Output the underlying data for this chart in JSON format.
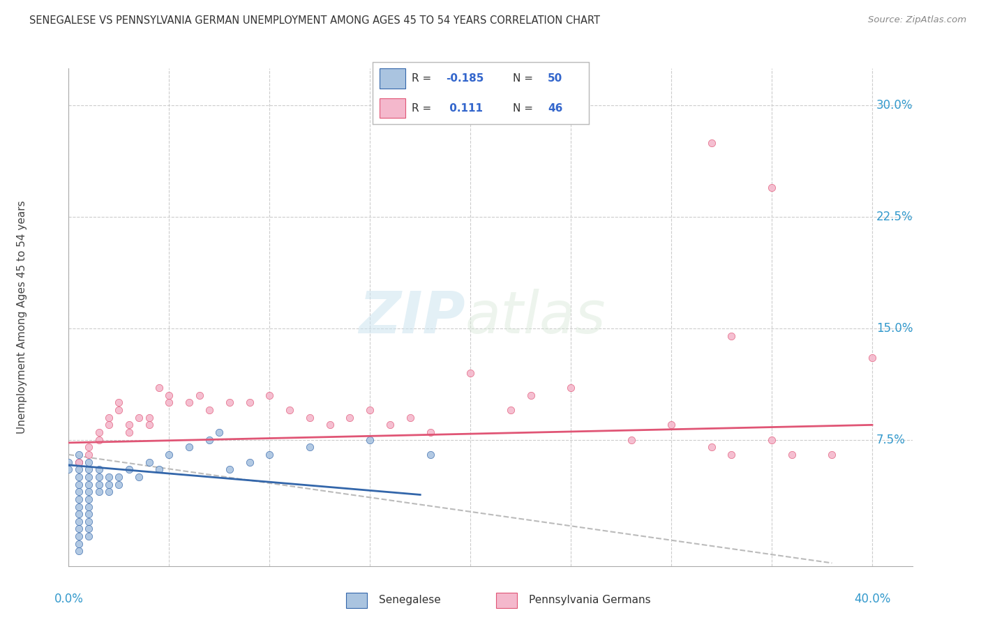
{
  "title": "SENEGALESE VS PENNSYLVANIA GERMAN UNEMPLOYMENT AMONG AGES 45 TO 54 YEARS CORRELATION CHART",
  "source": "Source: ZipAtlas.com",
  "ylabel": "Unemployment Among Ages 45 to 54 years",
  "yticks_labels": [
    "30.0%",
    "22.5%",
    "15.0%",
    "7.5%"
  ],
  "ytick_vals": [
    0.3,
    0.225,
    0.15,
    0.075
  ],
  "xtick_vals": [
    0.0,
    0.05,
    0.1,
    0.15,
    0.2,
    0.25,
    0.3,
    0.35,
    0.4
  ],
  "xlim": [
    0.0,
    0.42
  ],
  "ylim": [
    -0.01,
    0.325
  ],
  "blue_color": "#aac4e0",
  "pink_color": "#f4b8cc",
  "trend_blue": "#3366aa",
  "trend_pink": "#e05575",
  "trend_gray": "#bbbbbb",
  "watermark_zip": "ZIP",
  "watermark_atlas": "atlas",
  "senegalese_dots": [
    [
      0.0,
      0.055
    ],
    [
      0.0,
      0.06
    ],
    [
      0.005,
      0.065
    ],
    [
      0.005,
      0.06
    ],
    [
      0.005,
      0.055
    ],
    [
      0.005,
      0.05
    ],
    [
      0.005,
      0.045
    ],
    [
      0.005,
      0.04
    ],
    [
      0.005,
      0.035
    ],
    [
      0.005,
      0.03
    ],
    [
      0.005,
      0.025
    ],
    [
      0.005,
      0.02
    ],
    [
      0.005,
      0.015
    ],
    [
      0.005,
      0.01
    ],
    [
      0.005,
      0.005
    ],
    [
      0.005,
      0.0
    ],
    [
      0.01,
      0.06
    ],
    [
      0.01,
      0.055
    ],
    [
      0.01,
      0.05
    ],
    [
      0.01,
      0.045
    ],
    [
      0.01,
      0.04
    ],
    [
      0.01,
      0.035
    ],
    [
      0.01,
      0.03
    ],
    [
      0.01,
      0.025
    ],
    [
      0.01,
      0.02
    ],
    [
      0.01,
      0.015
    ],
    [
      0.01,
      0.01
    ],
    [
      0.015,
      0.055
    ],
    [
      0.015,
      0.05
    ],
    [
      0.015,
      0.045
    ],
    [
      0.015,
      0.04
    ],
    [
      0.02,
      0.05
    ],
    [
      0.02,
      0.045
    ],
    [
      0.02,
      0.04
    ],
    [
      0.025,
      0.05
    ],
    [
      0.025,
      0.045
    ],
    [
      0.03,
      0.055
    ],
    [
      0.035,
      0.05
    ],
    [
      0.04,
      0.06
    ],
    [
      0.045,
      0.055
    ],
    [
      0.05,
      0.065
    ],
    [
      0.06,
      0.07
    ],
    [
      0.07,
      0.075
    ],
    [
      0.075,
      0.08
    ],
    [
      0.08,
      0.055
    ],
    [
      0.09,
      0.06
    ],
    [
      0.1,
      0.065
    ],
    [
      0.12,
      0.07
    ],
    [
      0.15,
      0.075
    ],
    [
      0.18,
      0.065
    ]
  ],
  "penn_german_dots": [
    [
      0.005,
      0.06
    ],
    [
      0.01,
      0.065
    ],
    [
      0.01,
      0.07
    ],
    [
      0.015,
      0.075
    ],
    [
      0.015,
      0.08
    ],
    [
      0.02,
      0.09
    ],
    [
      0.02,
      0.085
    ],
    [
      0.025,
      0.095
    ],
    [
      0.025,
      0.1
    ],
    [
      0.03,
      0.08
    ],
    [
      0.03,
      0.085
    ],
    [
      0.035,
      0.09
    ],
    [
      0.04,
      0.085
    ],
    [
      0.04,
      0.09
    ],
    [
      0.045,
      0.11
    ],
    [
      0.05,
      0.1
    ],
    [
      0.05,
      0.105
    ],
    [
      0.06,
      0.1
    ],
    [
      0.065,
      0.105
    ],
    [
      0.07,
      0.095
    ],
    [
      0.08,
      0.1
    ],
    [
      0.09,
      0.1
    ],
    [
      0.1,
      0.105
    ],
    [
      0.11,
      0.095
    ],
    [
      0.12,
      0.09
    ],
    [
      0.13,
      0.085
    ],
    [
      0.14,
      0.09
    ],
    [
      0.15,
      0.095
    ],
    [
      0.16,
      0.085
    ],
    [
      0.17,
      0.09
    ],
    [
      0.18,
      0.08
    ],
    [
      0.2,
      0.12
    ],
    [
      0.22,
      0.095
    ],
    [
      0.23,
      0.105
    ],
    [
      0.25,
      0.11
    ],
    [
      0.28,
      0.075
    ],
    [
      0.3,
      0.085
    ],
    [
      0.32,
      0.07
    ],
    [
      0.33,
      0.065
    ],
    [
      0.35,
      0.075
    ],
    [
      0.36,
      0.065
    ],
    [
      0.38,
      0.065
    ],
    [
      0.4,
      0.13
    ],
    [
      0.35,
      0.245
    ],
    [
      0.32,
      0.275
    ],
    [
      0.33,
      0.145
    ]
  ],
  "blue_trend_x": [
    0.0,
    0.175
  ],
  "blue_trend_y": [
    0.058,
    0.038
  ],
  "gray_trend_x": [
    0.0,
    0.38
  ],
  "gray_trend_y": [
    0.065,
    -0.008
  ],
  "pink_trend_x": [
    0.0,
    0.4
  ],
  "pink_trend_y": [
    0.073,
    0.085
  ]
}
